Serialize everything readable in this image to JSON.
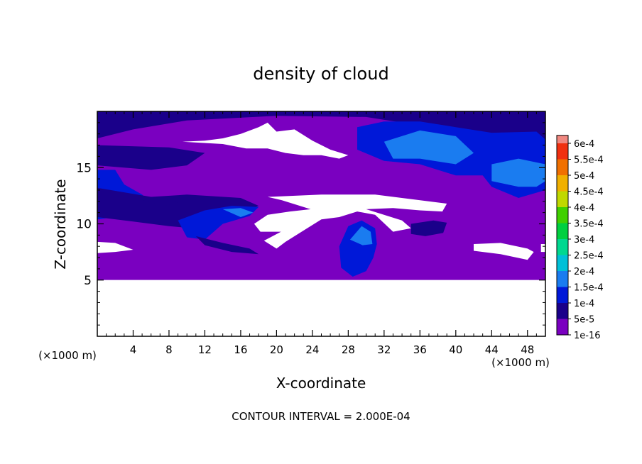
{
  "chart_data": {
    "type": "heatmap",
    "title": "density of cloud",
    "xlabel": "X-coordinate",
    "ylabel": "Z-coordinate",
    "x_unit_left": "(×1000 m)",
    "x_unit_right": "(×1000 m)",
    "footer": "CONTOUR INTERVAL = 2.000E-04",
    "xlim": [
      0,
      50
    ],
    "ylim": [
      0,
      20
    ],
    "x_ticks": [
      4,
      8,
      12,
      16,
      20,
      24,
      28,
      32,
      36,
      40,
      44,
      48
    ],
    "y_ticks": [
      5,
      10,
      15
    ],
    "colorbar": {
      "levels": [
        "1e-16",
        "5e-5",
        "1e-4",
        "1.5e-4",
        "2e-4",
        "2.5e-4",
        "3e-4",
        "3.5e-4",
        "4e-4",
        "4.5e-4",
        "5e-4",
        "5.5e-4",
        "6e-4"
      ],
      "colors": [
        "#7a00c0",
        "#1a008a",
        "#0018d8",
        "#1a7cf0",
        "#00c0d8",
        "#00d890",
        "#00d040",
        "#40d000",
        "#c0d800",
        "#f0b000",
        "#f07000",
        "#f03010",
        "#f08880"
      ]
    },
    "background_value": "1e-16",
    "background_z_range": [
      5,
      20
    ],
    "regions": [
      {
        "level": "5e-5",
        "polygon": [
          [
            0,
            20
          ],
          [
            50,
            20
          ],
          [
            50,
            17
          ],
          [
            44,
            17.5
          ],
          [
            38,
            18.5
          ],
          [
            30,
            19.5
          ],
          [
            20,
            19.6
          ],
          [
            10,
            19.2
          ],
          [
            4,
            18.4
          ],
          [
            0,
            17.6
          ]
        ]
      },
      {
        "level": "5e-5",
        "polygon": [
          [
            0,
            17
          ],
          [
            8,
            16.8
          ],
          [
            12,
            16.3
          ],
          [
            10,
            15.2
          ],
          [
            6,
            14.8
          ],
          [
            0,
            15.2
          ]
        ]
      },
      {
        "level": "1e-4",
        "polygon": [
          [
            0,
            14.8
          ],
          [
            2,
            14.8
          ],
          [
            3,
            13.5
          ],
          [
            5,
            12.6
          ],
          [
            6,
            11.8
          ],
          [
            4,
            10.8
          ],
          [
            0,
            10.4
          ]
        ]
      },
      {
        "level": "5e-5",
        "polygon": [
          [
            0,
            10.6
          ],
          [
            4,
            10.2
          ],
          [
            8,
            9.8
          ],
          [
            12,
            9.5
          ],
          [
            14,
            10.2
          ],
          [
            18,
            11.6
          ],
          [
            16,
            12.3
          ],
          [
            10,
            12.6
          ],
          [
            6,
            12.4
          ],
          [
            3,
            12.8
          ],
          [
            0,
            13.2
          ]
        ]
      },
      {
        "level": "1e-4",
        "polygon": [
          [
            9,
            10.3
          ],
          [
            12,
            11.2
          ],
          [
            15,
            11.6
          ],
          [
            18,
            11.5
          ],
          [
            17,
            10.7
          ],
          [
            14,
            10
          ],
          [
            12,
            8.6
          ],
          [
            10,
            8.8
          ]
        ]
      },
      {
        "level": "1.5e-4",
        "polygon": [
          [
            14,
            11.3
          ],
          [
            16,
            11.4
          ],
          [
            17.4,
            11
          ],
          [
            16,
            10.6
          ]
        ]
      },
      {
        "level": "5e-5",
        "polygon": [
          [
            11,
            8.9
          ],
          [
            14,
            8.3
          ],
          [
            17,
            7.8
          ],
          [
            18,
            7.3
          ],
          [
            15,
            7.5
          ],
          [
            12,
            8.1
          ]
        ]
      },
      {
        "level": "1e-4",
        "polygon": [
          [
            29,
            18.6
          ],
          [
            32,
            19.1
          ],
          [
            36,
            19.1
          ],
          [
            40,
            18.6
          ],
          [
            44,
            18.1
          ],
          [
            49,
            18.2
          ],
          [
            50,
            17.5
          ],
          [
            50,
            13
          ],
          [
            47,
            12.3
          ],
          [
            44,
            13.3
          ],
          [
            43,
            14.3
          ],
          [
            40,
            14.3
          ],
          [
            36,
            15.3
          ],
          [
            32,
            15.6
          ],
          [
            29,
            16.6
          ]
        ]
      },
      {
        "level": "1.5e-4",
        "polygon": [
          [
            32,
            17.3
          ],
          [
            36,
            18.3
          ],
          [
            40,
            17.8
          ],
          [
            42,
            16.3
          ],
          [
            40,
            15.3
          ],
          [
            36,
            15.8
          ],
          [
            33,
            15.8
          ]
        ]
      },
      {
        "level": "1.5e-4",
        "polygon": [
          [
            44,
            13.8
          ],
          [
            47,
            13.3
          ],
          [
            49,
            13.3
          ],
          [
            50,
            13.8
          ],
          [
            50,
            15.3
          ],
          [
            47,
            15.8
          ],
          [
            44,
            15.3
          ]
        ]
      },
      {
        "level": "5e-5",
        "polygon": [
          [
            35,
            10
          ],
          [
            37.5,
            10.3
          ],
          [
            39,
            10.1
          ],
          [
            38.6,
            9.2
          ],
          [
            36.6,
            8.9
          ],
          [
            35,
            9.1
          ]
        ]
      },
      {
        "level": "1e-4",
        "polygon": [
          [
            27,
            8
          ],
          [
            28,
            9.8
          ],
          [
            29.5,
            10.3
          ],
          [
            31,
            9.6
          ],
          [
            31.2,
            8.2
          ],
          [
            30.8,
            7
          ],
          [
            30,
            5.8
          ],
          [
            28.5,
            5.3
          ],
          [
            27.2,
            6.1
          ]
        ]
      },
      {
        "level": "1.5e-4",
        "polygon": [
          [
            28.2,
            8.6
          ],
          [
            29.5,
            9.8
          ],
          [
            30.5,
            9.3
          ],
          [
            30.7,
            8.2
          ],
          [
            29.6,
            8.1
          ]
        ]
      },
      {
        "level": "5e-5",
        "polygon": [
          [
            5,
            12.1
          ],
          [
            7.5,
            12.2
          ],
          [
            9,
            11.9
          ],
          [
            7.5,
            11.6
          ]
        ]
      }
    ],
    "empty_regions": [
      {
        "polygon": [
          [
            0,
            5
          ],
          [
            50,
            5
          ],
          [
            50,
            0
          ],
          [
            0,
            0
          ]
        ]
      },
      {
        "polygon": [
          [
            9.5,
            17.3
          ],
          [
            12,
            17.4
          ],
          [
            14,
            17.6
          ],
          [
            16,
            18
          ],
          [
            18,
            18.6
          ],
          [
            19,
            19
          ],
          [
            20,
            18.2
          ],
          [
            22,
            18.4
          ],
          [
            24,
            17.4
          ],
          [
            26,
            16.6
          ],
          [
            28,
            16.1
          ],
          [
            27,
            15.8
          ],
          [
            25,
            16.1
          ],
          [
            23,
            16.1
          ],
          [
            21,
            16.3
          ],
          [
            19,
            16.7
          ],
          [
            16.6,
            16.7
          ],
          [
            14,
            17.1
          ]
        ]
      },
      {
        "polygon": [
          [
            19,
            12.4
          ],
          [
            25,
            12.6
          ],
          [
            31,
            12.6
          ],
          [
            35,
            12.2
          ],
          [
            39,
            11.8
          ],
          [
            38.5,
            11.1
          ],
          [
            36,
            11.2
          ],
          [
            33,
            11.4
          ],
          [
            30,
            11.3
          ],
          [
            34,
            10.3
          ],
          [
            35,
            9.6
          ],
          [
            33,
            9.3
          ],
          [
            31,
            10.8
          ],
          [
            29,
            11.1
          ],
          [
            27,
            10.6
          ],
          [
            25,
            10.4
          ],
          [
            23,
            9.4
          ],
          [
            21,
            8.4
          ],
          [
            20,
            7.8
          ],
          [
            18.6,
            8.5
          ],
          [
            20.5,
            9.3
          ],
          [
            18.2,
            9.3
          ],
          [
            17.5,
            10
          ],
          [
            19,
            10.8
          ],
          [
            21.5,
            11.1
          ],
          [
            23.8,
            11.3
          ],
          [
            20.6,
            12.1
          ]
        ]
      },
      {
        "polygon": [
          [
            0,
            8.4
          ],
          [
            2,
            8.3
          ],
          [
            4,
            7.7
          ],
          [
            2,
            7.5
          ],
          [
            0,
            7.4
          ]
        ]
      },
      {
        "polygon": [
          [
            42,
            8.2
          ],
          [
            45,
            8.3
          ],
          [
            48,
            7.8
          ],
          [
            48.7,
            7.5
          ],
          [
            48,
            6.8
          ],
          [
            45,
            7.3
          ],
          [
            42,
            7.6
          ]
        ]
      },
      {
        "polygon": [
          [
            49.5,
            8.2
          ],
          [
            50,
            8.2
          ],
          [
            50,
            7.5
          ],
          [
            49.5,
            7.5
          ]
        ]
      }
    ]
  }
}
